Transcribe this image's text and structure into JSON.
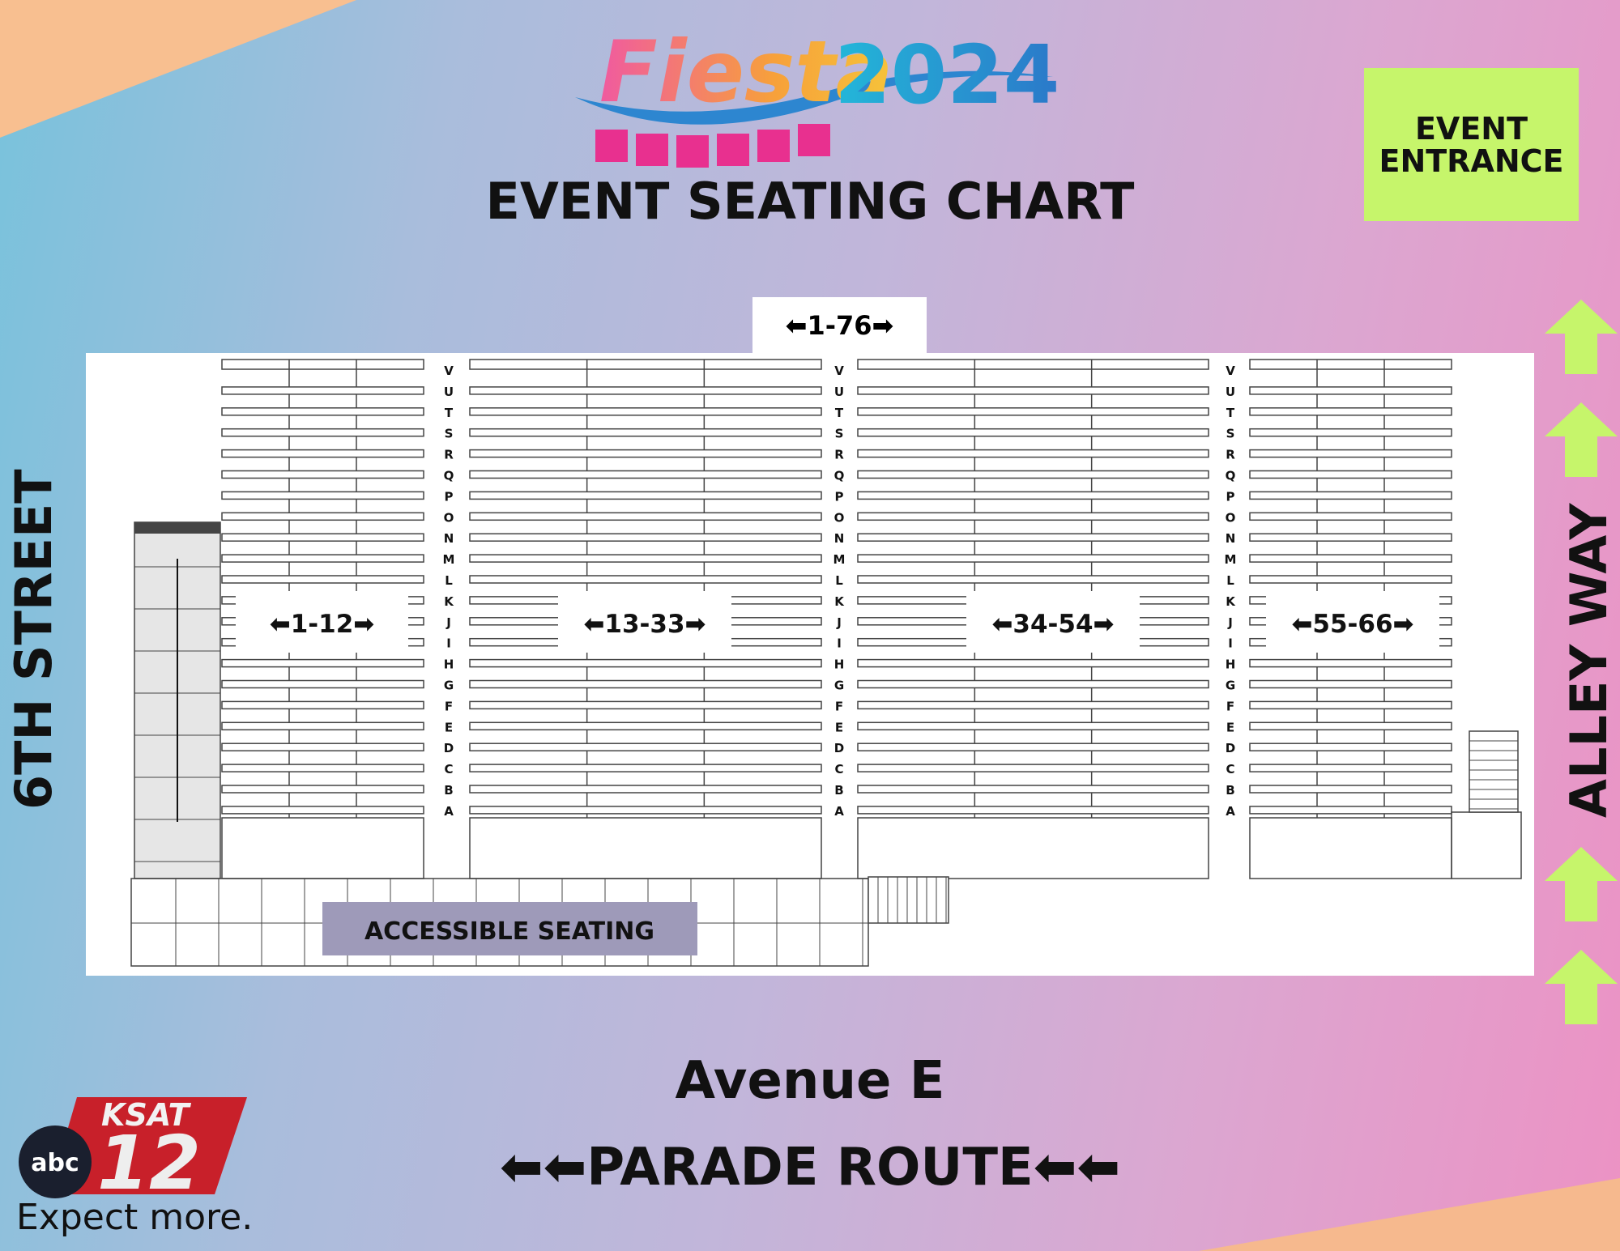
{
  "logo": {
    "word": "Fiesta",
    "year": "2024"
  },
  "title": "EVENT SEATING CHART",
  "entrance": {
    "line1": "EVENT",
    "line2": "ENTRANCE"
  },
  "streets": {
    "left": "6TH STREET",
    "right": "ALLEY WAY",
    "bottom": "Avenue E"
  },
  "parade_route": "PARADE ROUTE",
  "top_section": "1-76",
  "sections": [
    "1-12",
    "13-33",
    "34-54",
    "55-66"
  ],
  "row_letters": [
    "V",
    "U",
    "T",
    "S",
    "R",
    "Q",
    "P",
    "O",
    "N",
    "M",
    "L",
    "K",
    "J",
    "I",
    "H",
    "G",
    "F",
    "E",
    "D",
    "C",
    "B",
    "A"
  ],
  "accessible_seating": "ACCESSIBLE SEATING",
  "broadcaster": {
    "network": "abc",
    "station": "KSAT",
    "channel": "12",
    "tagline": "Expect more."
  },
  "colors": {
    "entrance": "#c6f56b",
    "arrows": "#c6f56b",
    "accessible": "#9e9ab9",
    "ksat_red": "#c8202a"
  }
}
